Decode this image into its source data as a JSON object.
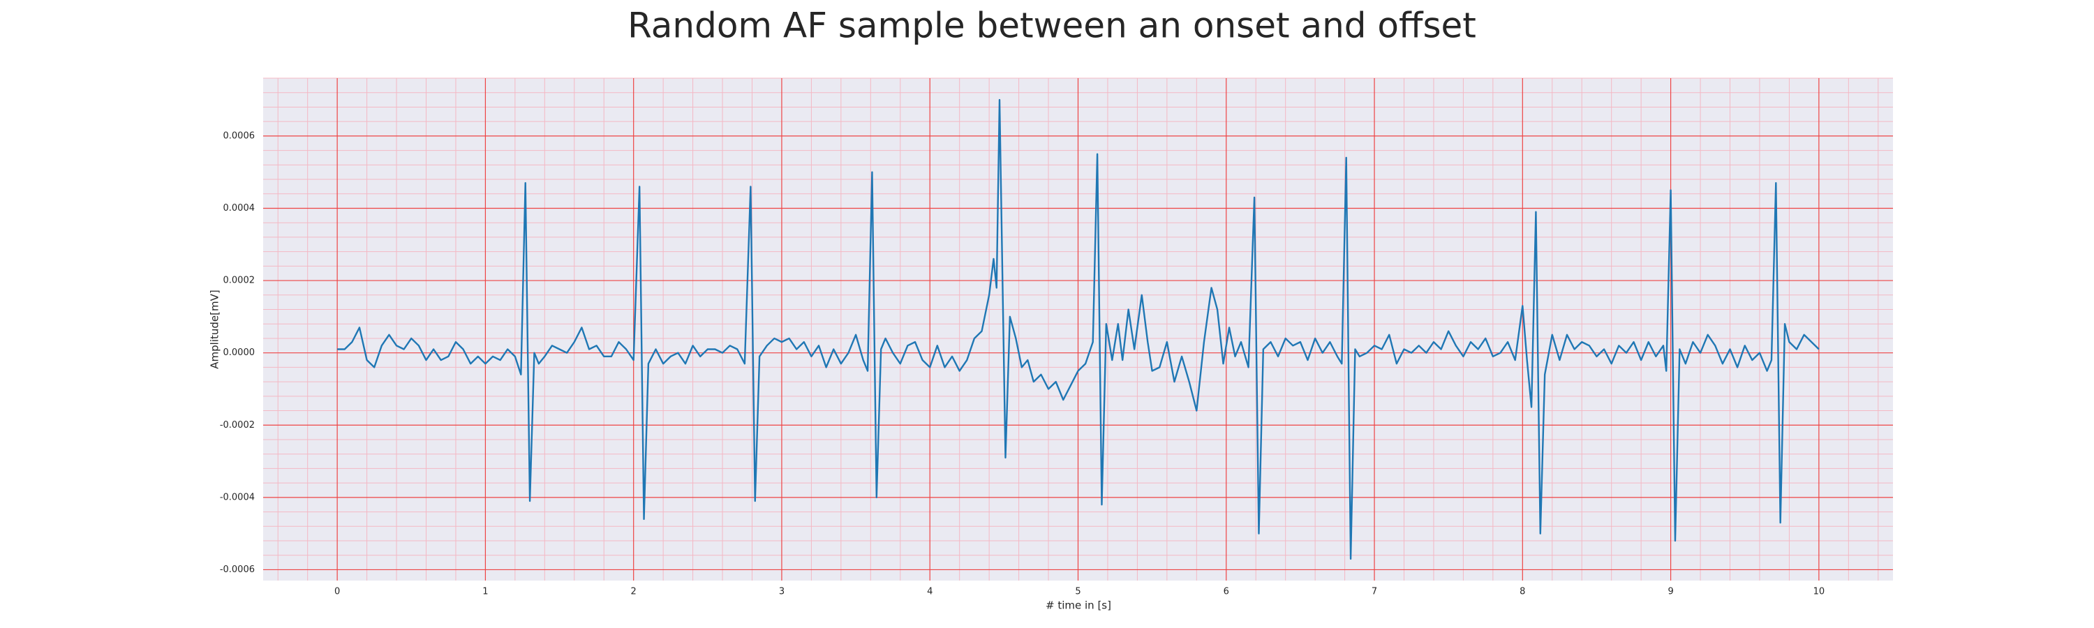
{
  "chart_data": {
    "type": "line",
    "title": "Random AF sample between an onset and offset",
    "xlabel": "# time in [s]",
    "ylabel": "Amplitude[mV]",
    "color": "#1f77b4",
    "xlim": [
      -0.5,
      10.5
    ],
    "ylim": [
      -0.00063,
      0.00076
    ],
    "xticks": [
      0,
      1,
      2,
      3,
      4,
      5,
      6,
      7,
      8,
      9,
      10
    ],
    "yticks": [
      -0.0006,
      -0.0004,
      -0.0002,
      {
        "value": 0,
        "label": "0.0000"
      },
      0.0002,
      0.0004,
      0.0006
    ],
    "grid": true,
    "minor_grid": true,
    "x": [
      0.0,
      0.05,
      0.1,
      0.15,
      0.2,
      0.25,
      0.3,
      0.35,
      0.4,
      0.45,
      0.5,
      0.55,
      0.6,
      0.65,
      0.7,
      0.75,
      0.8,
      0.85,
      0.9,
      0.95,
      1.0,
      1.05,
      1.1,
      1.15,
      1.2,
      1.24,
      1.27,
      1.3,
      1.33,
      1.36,
      1.4,
      1.45,
      1.5,
      1.55,
      1.6,
      1.65,
      1.7,
      1.75,
      1.8,
      1.85,
      1.9,
      1.95,
      2.0,
      2.04,
      2.07,
      2.1,
      2.15,
      2.2,
      2.25,
      2.3,
      2.35,
      2.4,
      2.45,
      2.5,
      2.55,
      2.6,
      2.65,
      2.7,
      2.75,
      2.79,
      2.82,
      2.85,
      2.9,
      2.95,
      3.0,
      3.05,
      3.1,
      3.15,
      3.2,
      3.25,
      3.3,
      3.35,
      3.4,
      3.45,
      3.5,
      3.55,
      3.58,
      3.61,
      3.64,
      3.67,
      3.7,
      3.75,
      3.8,
      3.85,
      3.9,
      3.95,
      4.0,
      4.05,
      4.1,
      4.15,
      4.2,
      4.25,
      4.3,
      4.35,
      4.4,
      4.43,
      4.45,
      4.47,
      4.51,
      4.54,
      4.58,
      4.62,
      4.66,
      4.7,
      4.75,
      4.8,
      4.85,
      4.9,
      4.95,
      5.0,
      5.05,
      5.1,
      5.13,
      5.16,
      5.19,
      5.23,
      5.27,
      5.3,
      5.34,
      5.38,
      5.43,
      5.47,
      5.5,
      5.55,
      5.6,
      5.65,
      5.7,
      5.75,
      5.8,
      5.85,
      5.9,
      5.94,
      5.98,
      6.02,
      6.06,
      6.1,
      6.15,
      6.19,
      6.22,
      6.25,
      6.3,
      6.35,
      6.4,
      6.45,
      6.5,
      6.55,
      6.6,
      6.65,
      6.7,
      6.75,
      6.78,
      6.81,
      6.84,
      6.87,
      6.9,
      6.95,
      7.0,
      7.05,
      7.1,
      7.15,
      7.2,
      7.25,
      7.3,
      7.35,
      7.4,
      7.45,
      7.5,
      7.55,
      7.6,
      7.65,
      7.7,
      7.75,
      7.8,
      7.85,
      7.9,
      7.95,
      8.0,
      8.03,
      8.06,
      8.09,
      8.12,
      8.15,
      8.2,
      8.25,
      8.3,
      8.35,
      8.4,
      8.45,
      8.5,
      8.55,
      8.6,
      8.65,
      8.7,
      8.75,
      8.8,
      8.85,
      8.9,
      8.95,
      8.97,
      9.0,
      9.03,
      9.06,
      9.1,
      9.15,
      9.2,
      9.25,
      9.3,
      9.35,
      9.4,
      9.45,
      9.5,
      9.55,
      9.6,
      9.65,
      9.68,
      9.71,
      9.74,
      9.77,
      9.8,
      9.85,
      9.9,
      9.95,
      10.0
    ],
    "values": [
      1e-05,
      1e-05,
      3e-05,
      7e-05,
      -2e-05,
      -4e-05,
      2e-05,
      5e-05,
      2e-05,
      1e-05,
      4e-05,
      2e-05,
      -2e-05,
      1e-05,
      -2e-05,
      -1e-05,
      3e-05,
      1e-05,
      -3e-05,
      -1e-05,
      -3e-05,
      -1e-05,
      -2e-05,
      1e-05,
      -1e-05,
      -6e-05,
      0.00047,
      -0.00041,
      0,
      -3e-05,
      -1e-05,
      2e-05,
      1e-05,
      0,
      3e-05,
      7e-05,
      1e-05,
      2e-05,
      -1e-05,
      -1e-05,
      3e-05,
      1e-05,
      -2e-05,
      0.00046,
      -0.00046,
      -3e-05,
      1e-05,
      -3e-05,
      -1e-05,
      0,
      -3e-05,
      2e-05,
      -1e-05,
      1e-05,
      1e-05,
      0,
      2e-05,
      1e-05,
      -3e-05,
      0.00046,
      -0.00041,
      -1e-05,
      2e-05,
      4e-05,
      3e-05,
      4e-05,
      1e-05,
      3e-05,
      -1e-05,
      2e-05,
      -4e-05,
      1e-05,
      -3e-05,
      0,
      5e-05,
      -2e-05,
      -5e-05,
      0.0005,
      -0.0004,
      1e-05,
      4e-05,
      0,
      -3e-05,
      2e-05,
      3e-05,
      -2e-05,
      -4e-05,
      2e-05,
      -4e-05,
      -1e-05,
      -5e-05,
      -2e-05,
      4e-05,
      6e-05,
      0.00016,
      0.00026,
      0.00018,
      0.0007,
      -0.00029,
      0.0001,
      4e-05,
      -4e-05,
      -2e-05,
      -8e-05,
      -6e-05,
      -0.0001,
      -8e-05,
      -0.00013,
      -9e-05,
      -5e-05,
      -3e-05,
      3e-05,
      0.00055,
      -0.00042,
      8e-05,
      -2e-05,
      8e-05,
      -2e-05,
      0.00012,
      1e-05,
      0.00016,
      3e-05,
      -5e-05,
      -4e-05,
      3e-05,
      -8e-05,
      -1e-05,
      -8e-05,
      -0.00016,
      3e-05,
      0.00018,
      0.00012,
      -3e-05,
      7e-05,
      -1e-05,
      3e-05,
      -4e-05,
      0.00043,
      -0.0005,
      1e-05,
      3e-05,
      -1e-05,
      4e-05,
      2e-05,
      3e-05,
      -2e-05,
      4e-05,
      0,
      3e-05,
      -1e-05,
      -3e-05,
      0.00054,
      -0.00057,
      1e-05,
      -1e-05,
      0,
      2e-05,
      1e-05,
      5e-05,
      -3e-05,
      1e-05,
      0,
      2e-05,
      0,
      3e-05,
      1e-05,
      6e-05,
      2e-05,
      -1e-05,
      3e-05,
      1e-05,
      4e-05,
      -1e-05,
      0,
      3e-05,
      -2e-05,
      0.00013,
      -2e-05,
      -0.00015,
      0.00039,
      -0.0005,
      -6e-05,
      5e-05,
      -2e-05,
      5e-05,
      1e-05,
      3e-05,
      2e-05,
      -1e-05,
      1e-05,
      -3e-05,
      2e-05,
      0,
      3e-05,
      -2e-05,
      3e-05,
      -1e-05,
      2e-05,
      -5e-05,
      0.00045,
      -0.00052,
      1e-05,
      -3e-05,
      3e-05,
      0,
      5e-05,
      2e-05,
      -3e-05,
      1e-05,
      -4e-05,
      2e-05,
      -2e-05,
      0,
      -5e-05,
      -2e-05,
      0.00047,
      -0.00047,
      8e-05,
      3e-05,
      1e-05,
      5e-05,
      3e-05,
      1e-05
    ]
  }
}
